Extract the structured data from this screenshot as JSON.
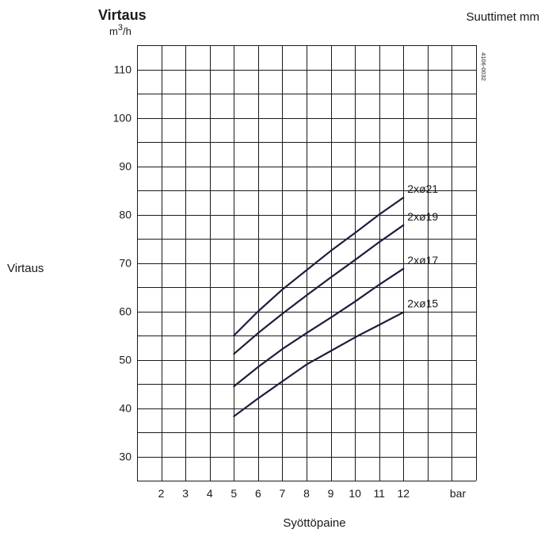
{
  "chart_data": {
    "type": "line",
    "title": "Virtaus",
    "top_right_label": "Suuttimet mm",
    "unit_base": "m",
    "unit_sup": "3",
    "unit_tail": "/h",
    "ylabel": "Virtaus",
    "xlabel": "Syöttöpaine",
    "x_unit_label": "bar",
    "code_label": "4106-0032",
    "xlim": [
      1,
      15
    ],
    "ylim": [
      25,
      115
    ],
    "x_ticks": [
      2,
      3,
      4,
      5,
      6,
      7,
      8,
      9,
      10,
      11,
      12
    ],
    "y_ticks": [
      30,
      40,
      50,
      60,
      70,
      80,
      90,
      100,
      110
    ],
    "grid": true,
    "series": [
      {
        "name": "2xø21",
        "x": [
          5,
          6,
          7,
          8,
          9,
          10,
          11,
          12
        ],
        "y": [
          55,
          60,
          64.5,
          68.5,
          72.5,
          76.2,
          80,
          83.5
        ]
      },
      {
        "name": "2xø19",
        "x": [
          5,
          6,
          7,
          8,
          9,
          10,
          11,
          12
        ],
        "y": [
          51.2,
          55.5,
          59.5,
          63.3,
          67,
          70.6,
          74.3,
          77.8
        ]
      },
      {
        "name": "2xø17",
        "x": [
          5,
          6,
          7,
          8,
          9,
          10,
          11,
          12
        ],
        "y": [
          44.5,
          48.5,
          52.2,
          55.5,
          58.7,
          62,
          65.5,
          68.8
        ]
      },
      {
        "name": "2xø15",
        "x": [
          5,
          6,
          7,
          8,
          9,
          10,
          11,
          12
        ],
        "y": [
          38.3,
          42,
          45.5,
          49,
          51.8,
          54.6,
          57.2,
          59.8
        ]
      }
    ]
  }
}
